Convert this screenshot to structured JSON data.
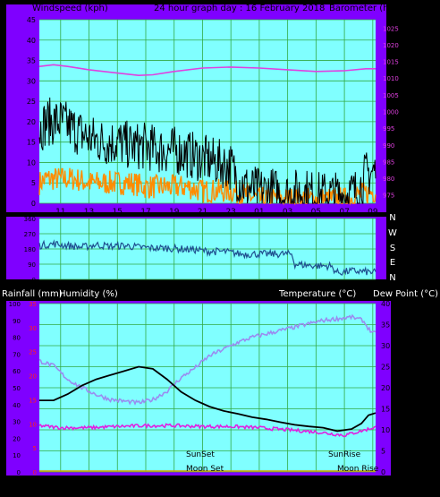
{
  "title": "24 hour graph day : 16 February 2018",
  "colors": {
    "background": "#000000",
    "panel_purple": "#7f00ff",
    "plot_cyan": "#80ffff",
    "grid": "#33aa44",
    "windspeed": "#000000",
    "gust_orange": "#ff8c00",
    "barometer": "#e040e0",
    "direction": "#1f4f8f",
    "temperature": "#000000",
    "humidity": "#9a8cf0",
    "dew_point": "#e020e0",
    "rain_axis": "#ff2020"
  },
  "chart_data": [
    {
      "type": "line",
      "panel": "wind",
      "left_axis_label": "Windspeed (kph)",
      "right_axis_label": "Barometer (hpa)",
      "x_ticks": [
        "11",
        "13",
        "15",
        "17",
        "19",
        "21",
        "23",
        "01",
        "03",
        "05",
        "07",
        "09"
      ],
      "x_start_hour": 9.5,
      "x_end_hour": 33.2,
      "ylim": [
        0,
        45
      ],
      "yticks": [
        "0",
        "5",
        "10",
        "15",
        "20",
        "25",
        "30",
        "35",
        "40",
        "45"
      ],
      "y2lim": [
        972.5,
        1027.5
      ],
      "y2ticks": [
        "975",
        "980",
        "985",
        "990",
        "995",
        "1000",
        "1005",
        "1010",
        "1015",
        "1020",
        "1025"
      ],
      "series": [
        {
          "key": "windspeed",
          "x": [
            9.5,
            10,
            11,
            12,
            13,
            14,
            15,
            16,
            17,
            18,
            19,
            20,
            21,
            22,
            23,
            23.5,
            24,
            25,
            26,
            27,
            28,
            29,
            30,
            31,
            32,
            32.5,
            33.2
          ],
          "values": [
            18,
            20,
            20,
            18,
            16,
            15,
            15,
            14,
            14,
            13,
            13,
            12,
            11,
            10,
            9,
            6,
            4,
            3,
            3,
            2,
            3,
            2,
            2,
            2,
            3,
            7,
            8
          ]
        },
        {
          "key": "gust_orange",
          "x": [
            9.5,
            10,
            11,
            12,
            13,
            14,
            15,
            16,
            17,
            18,
            19,
            20,
            21,
            22,
            23,
            24,
            25,
            26,
            27,
            28,
            29,
            30,
            31,
            32,
            33.2
          ],
          "values": [
            5,
            6,
            6,
            6,
            5,
            5,
            5,
            5,
            4,
            4,
            4,
            4,
            3,
            3,
            3,
            2,
            1,
            1,
            1,
            1,
            1,
            1,
            1,
            2,
            3
          ]
        },
        {
          "key": "barometer",
          "x": [
            9.5,
            10.5,
            11.5,
            13,
            15,
            16.5,
            17.5,
            19,
            21,
            23,
            25,
            27,
            29,
            31,
            32.5,
            33.2
          ],
          "values": [
            1013.5,
            1014,
            1013.5,
            1012.5,
            1011.5,
            1010.8,
            1011,
            1012,
            1013,
            1013.3,
            1013,
            1012.5,
            1012,
            1012.2,
            1012.8,
            1012.8
          ]
        }
      ]
    },
    {
      "type": "line",
      "panel": "direction",
      "right_axis_labels": [
        "N",
        "W",
        "S",
        "E",
        "N"
      ],
      "ylim": [
        0,
        360
      ],
      "yticks": [
        "0",
        "90",
        "180",
        "270",
        "360"
      ],
      "series": [
        {
          "key": "direction",
          "x": [
            9.5,
            10.5,
            11.5,
            12.5,
            13.5,
            14.5,
            15.5,
            16.5,
            17.5,
            18.5,
            19.5,
            20.5,
            21.5,
            22.5,
            23.3,
            23.6,
            24.5,
            25.5,
            26.5,
            27.3,
            27.5,
            29,
            30,
            30.5,
            31.5,
            32.5,
            33.2
          ],
          "values": [
            200,
            210,
            200,
            190,
            205,
            195,
            200,
            190,
            185,
            185,
            180,
            175,
            165,
            165,
            155,
            150,
            150,
            150,
            150,
            150,
            90,
            80,
            80,
            40,
            50,
            45,
            40
          ]
        }
      ]
    },
    {
      "type": "line",
      "panel": "temperature",
      "left_axis_label": "Rainfall (mm)",
      "left2_axis_label": "Humidity (%)",
      "right_axis_label": "Temperature (°C)",
      "right2_axis_label": "Dew Point (°C)",
      "annotations": [
        "SunSet",
        "SunRise",
        "Moon Set",
        "Moon Rise"
      ],
      "humidity_ticks": [
        "0",
        "10",
        "20",
        "30",
        "40",
        "50",
        "60",
        "70",
        "80",
        "90",
        "100"
      ],
      "rain_ticks": [
        "0",
        "5",
        "10",
        "15",
        "20",
        "25",
        "30",
        "35"
      ],
      "temp_ticks": [
        "0",
        "5",
        "10",
        "15",
        "20",
        "25",
        "30",
        "35",
        "40"
      ],
      "ylim": [
        0,
        40
      ],
      "series": [
        {
          "key": "temperature",
          "x": [
            9.5,
            10.5,
            11.5,
            12.5,
            13.5,
            14.5,
            15.5,
            16.5,
            17.5,
            18.5,
            19.5,
            20.5,
            21.5,
            22.5,
            23.5,
            24.5,
            25.5,
            26.5,
            27.5,
            28.5,
            29.5,
            30.5,
            31.5,
            32.2,
            32.7,
            33.2
          ],
          "values": [
            17,
            17,
            18.5,
            20.5,
            22,
            23,
            24,
            25,
            24.5,
            22,
            19,
            17,
            15.5,
            14.5,
            13.8,
            13,
            12.5,
            11.8,
            11.2,
            10.8,
            10.5,
            9.7,
            10.2,
            11.5,
            13.5,
            14
          ]
        },
        {
          "key": "humidity",
          "x": [
            9.5,
            10.5,
            11.5,
            12.5,
            13.5,
            14.5,
            15.5,
            16.5,
            17.5,
            18.5,
            19.5,
            20.5,
            21.5,
            22.5,
            23.5,
            24.5,
            25.5,
            26.5,
            27.5,
            28.5,
            29.5,
            30.5,
            31.5,
            32.3,
            32.8,
            33.2
          ],
          "values": [
            66,
            63,
            55,
            50,
            46,
            43,
            42,
            41,
            43,
            48,
            56,
            62,
            69,
            73,
            77,
            80,
            82,
            84,
            86,
            88,
            90,
            91,
            92,
            90,
            84,
            82
          ]
        },
        {
          "key": "dew_point",
          "x": [
            9.5,
            11,
            13,
            15,
            17,
            19,
            21,
            23,
            25,
            27,
            29,
            31,
            32.5,
            33.2
          ],
          "values": [
            11,
            10.5,
            10.5,
            10.8,
            11,
            11,
            10.8,
            10.8,
            10.5,
            10,
            9.5,
            8.7,
            10,
            10.7
          ]
        }
      ]
    }
  ]
}
